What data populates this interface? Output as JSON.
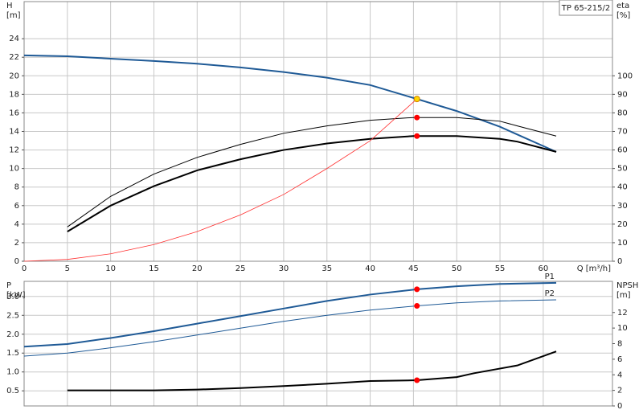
{
  "chart_data": [
    {
      "type": "line",
      "title": "TP 65-215/2",
      "ylabel": "H",
      "yunit": "[m]",
      "y2label": "eta",
      "y2unit": "[%]",
      "xlabel": "Q [m³/h]",
      "xlim": [
        0,
        68
      ],
      "xticks": [
        0,
        5,
        10,
        15,
        20,
        25,
        30,
        35,
        40,
        45,
        50,
        55,
        60
      ],
      "ylim": [
        0,
        28
      ],
      "yticks": [
        0,
        2,
        4,
        6,
        8,
        10,
        12,
        14,
        16,
        18,
        20,
        22,
        24
      ],
      "y2lim": [
        0,
        140
      ],
      "y2ticks": [
        0,
        10,
        20,
        30,
        40,
        50,
        60,
        70,
        80,
        90,
        100
      ],
      "grid": true,
      "series": [
        {
          "color": "#1f5a96",
          "width": 2,
          "x": [
            0,
            5,
            10,
            15,
            20,
            25,
            30,
            35,
            40,
            45.4,
            50,
            55,
            61.5
          ],
          "values": [
            22.2,
            22.1,
            21.85,
            21.6,
            21.3,
            20.9,
            20.4,
            19.8,
            19.0,
            17.5,
            16.2,
            14.5,
            11.8
          ]
        },
        {
          "color": "#000000",
          "width": 1,
          "axis": "y2",
          "x": [
            5,
            10,
            15,
            20,
            25,
            30,
            35,
            40,
            45,
            50,
            55,
            57,
            61.5
          ],
          "values": [
            18.5,
            35,
            47,
            56,
            63,
            69,
            73,
            76,
            77.5,
            77.5,
            75.5,
            73,
            67.5
          ]
        },
        {
          "color": "#000000",
          "width": 2,
          "axis": "y2",
          "x": [
            5,
            10,
            15,
            20,
            25,
            30,
            35,
            40,
            45,
            50,
            55,
            57,
            61.5
          ],
          "values": [
            16,
            30,
            40.5,
            49,
            55,
            60,
            63.5,
            66,
            67.5,
            67.5,
            66,
            64.5,
            59
          ]
        },
        {
          "color": "#ff3030",
          "width": 0.8,
          "axis": "y2",
          "x": [
            0,
            5,
            10,
            15,
            20,
            25,
            30,
            35,
            40,
            45.4
          ],
          "values": [
            0,
            1,
            4,
            9,
            16,
            25,
            36,
            50,
            65,
            87.5
          ]
        },
        {
          "color": "#ffd700",
          "marker": true,
          "x": [
            45.4
          ],
          "values": [
            17.5
          ]
        },
        {
          "color": "#ff0000",
          "marker": true,
          "axis": "y2",
          "x": [
            45.4,
            45.4
          ],
          "values": [
            77.5,
            67.5
          ]
        }
      ]
    },
    {
      "type": "line",
      "ylabel": "P",
      "yunit": "[kW]",
      "y2label": "NPSH",
      "y2unit": "[m]",
      "xlim": [
        0,
        68
      ],
      "ylim": [
        0.1,
        3.4
      ],
      "yticks": [
        0.5,
        {
          "value": 1,
          "label": "1.0"
        },
        1.5,
        {
          "value": 2,
          "label": "2.0"
        },
        2.5,
        {
          "value": 3,
          "label": "3.0"
        }
      ],
      "y2lim": [
        0,
        16
      ],
      "y2ticks": [
        0,
        2,
        4,
        6,
        8,
        10,
        12
      ],
      "grid": true,
      "series": [
        {
          "name": "P1",
          "color": "#1f5a96",
          "width": 2,
          "x": [
            0,
            5,
            10,
            15,
            20,
            25,
            30,
            35,
            40,
            45.4,
            50,
            55,
            61.5
          ],
          "values": [
            1.67,
            1.74,
            1.9,
            2.08,
            2.28,
            2.48,
            2.68,
            2.88,
            3.05,
            3.19,
            3.27,
            3.33,
            3.36
          ]
        },
        {
          "name": "P2",
          "color": "#1f5a96",
          "width": 1,
          "x": [
            0,
            5,
            10,
            15,
            20,
            25,
            30,
            35,
            40,
            45.4,
            50,
            55,
            61.5
          ],
          "values": [
            1.42,
            1.5,
            1.64,
            1.8,
            1.98,
            2.16,
            2.34,
            2.5,
            2.64,
            2.75,
            2.83,
            2.88,
            2.91
          ]
        },
        {
          "color": "#000000",
          "width": 2,
          "axis": "y2",
          "x": [
            5,
            10,
            15,
            20,
            25,
            30,
            35,
            40,
            45.4,
            50,
            52,
            57,
            61.5
          ],
          "values": [
            2.0,
            2.0,
            2.0,
            2.1,
            2.3,
            2.55,
            2.85,
            3.2,
            3.3,
            3.7,
            4.2,
            5.2,
            7.0
          ]
        },
        {
          "color": "#ff0000",
          "marker": true,
          "x": [
            45.4,
            45.4
          ],
          "values": [
            3.19,
            2.75
          ]
        },
        {
          "color": "#ff0000",
          "marker": true,
          "axis": "y2",
          "x": [
            45.4
          ],
          "values": [
            3.3
          ]
        }
      ]
    }
  ]
}
